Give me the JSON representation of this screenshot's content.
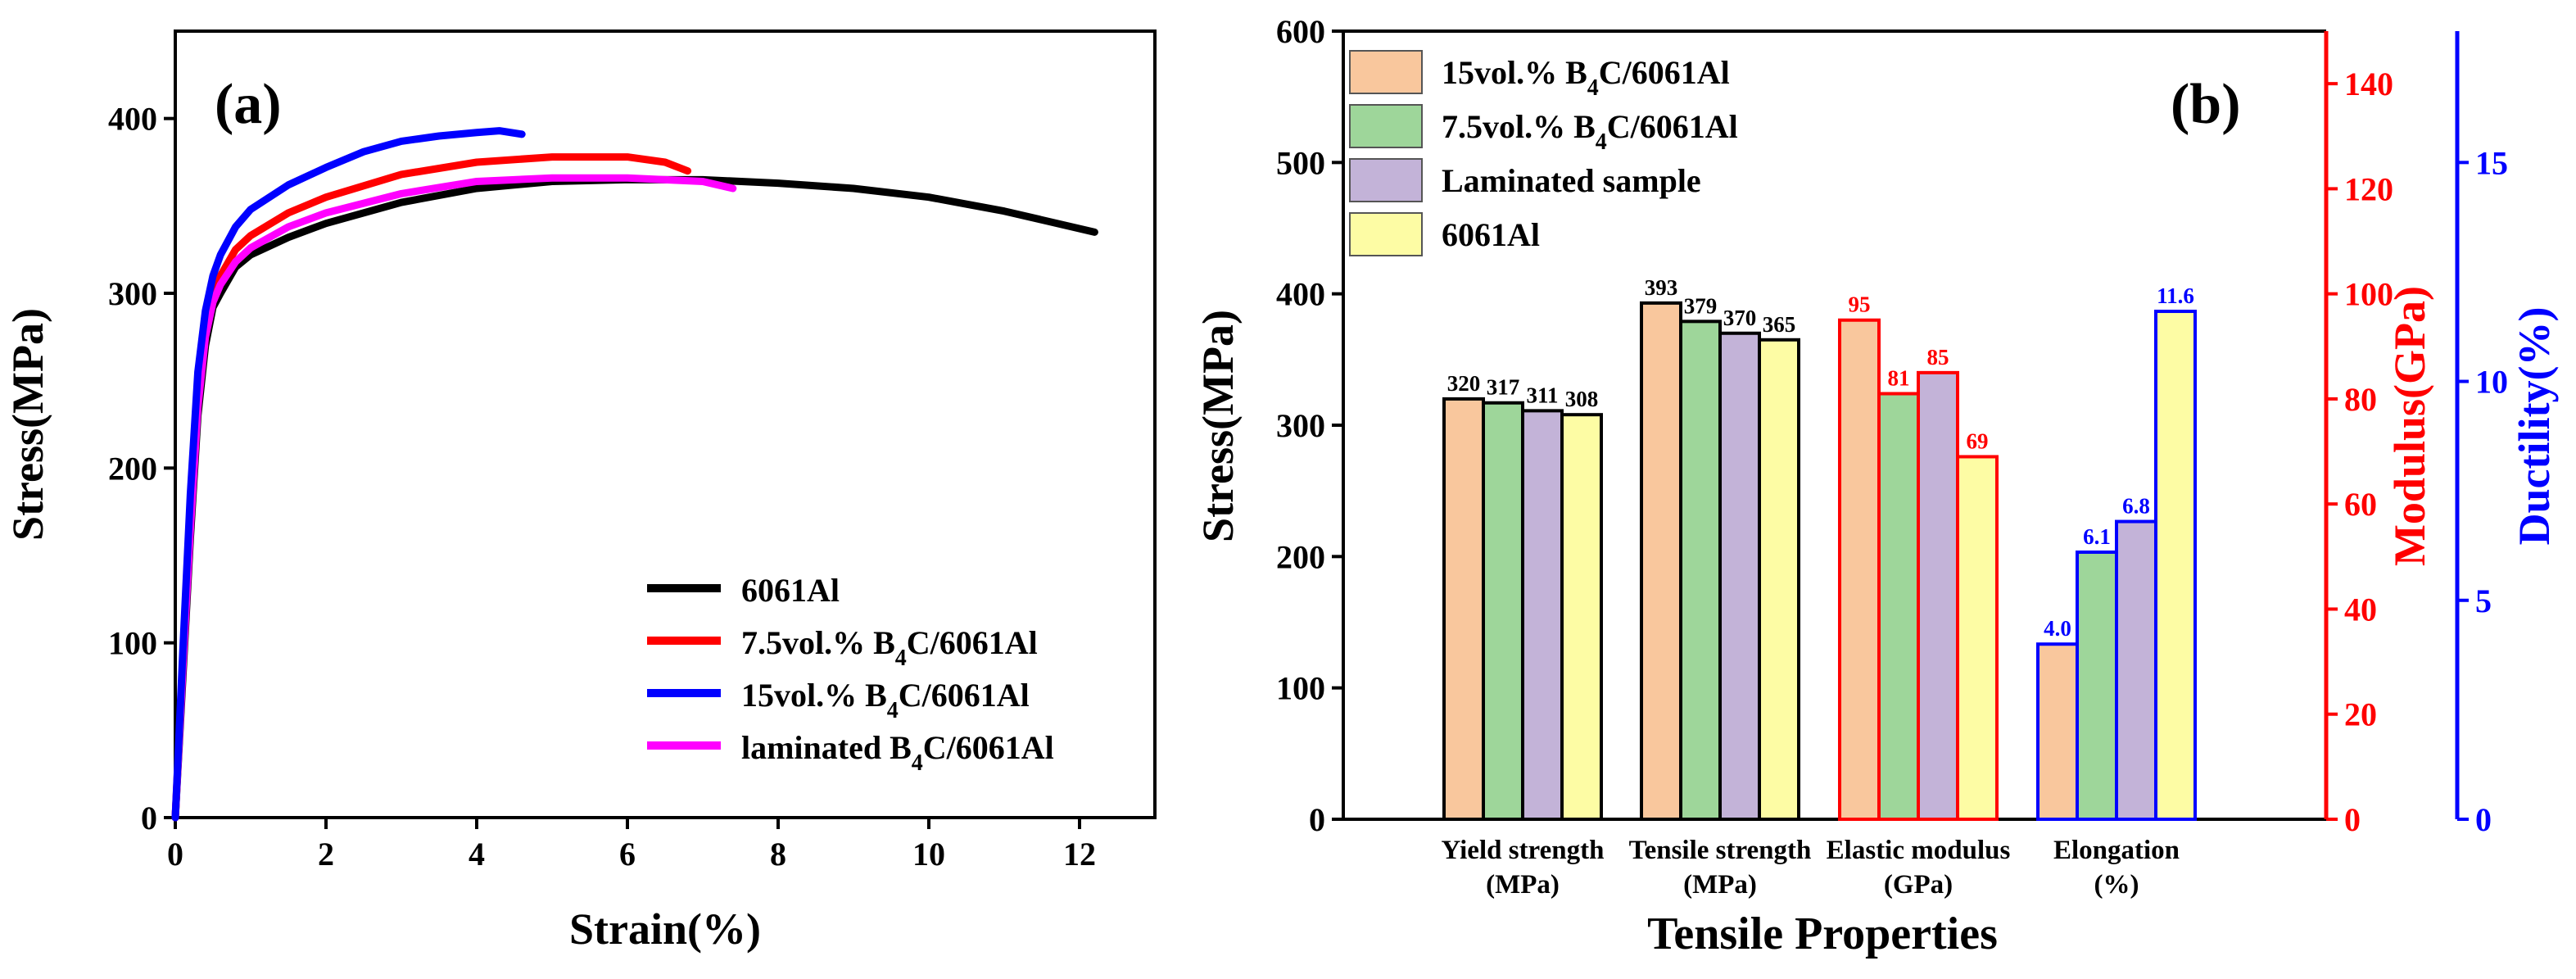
{
  "chart_data": [
    {
      "type": "line",
      "panel_label": "(a)",
      "xlabel": "Strain(%)",
      "ylabel": "Stress(MPa)",
      "xlim": [
        0,
        13
      ],
      "ylim": [
        0,
        450
      ],
      "xticks": [
        0,
        2,
        4,
        6,
        8,
        10,
        12
      ],
      "yticks": [
        0,
        100,
        200,
        300,
        400
      ],
      "legend_placement": "bottom-right",
      "series": [
        {
          "name": "6061Al",
          "color": "#000000",
          "x": [
            0,
            0.1,
            0.2,
            0.3,
            0.4,
            0.5,
            0.6,
            0.8,
            1.0,
            1.5,
            2,
            3,
            4,
            5,
            6,
            7,
            8,
            9,
            10,
            11,
            12.2
          ],
          "y": [
            0,
            80,
            160,
            230,
            270,
            292,
            300,
            315,
            322,
            332,
            340,
            352,
            360,
            364,
            365,
            365,
            363,
            360,
            355,
            347,
            335
          ]
        },
        {
          "name": "7.5vol.% B4C/6061Al",
          "color": "#ff0000",
          "x": [
            0,
            0.1,
            0.2,
            0.3,
            0.4,
            0.5,
            0.6,
            0.8,
            1.0,
            1.5,
            2,
            3,
            4,
            5,
            6,
            6.5,
            6.8
          ],
          "y": [
            0,
            90,
            170,
            240,
            280,
            300,
            310,
            325,
            333,
            346,
            355,
            368,
            375,
            378,
            378,
            375,
            370
          ]
        },
        {
          "name": "15vol.% B4C/6061Al",
          "color": "#0000ff",
          "x": [
            0,
            0.1,
            0.2,
            0.3,
            0.4,
            0.5,
            0.6,
            0.8,
            1.0,
            1.5,
            2,
            2.5,
            3,
            3.5,
            4,
            4.3,
            4.6
          ],
          "y": [
            0,
            95,
            185,
            255,
            290,
            310,
            322,
            338,
            348,
            362,
            372,
            381,
            387,
            390,
            392,
            393,
            391
          ]
        },
        {
          "name": "laminated B4C/6061Al",
          "color": "#ff00ff",
          "x": [
            0,
            0.1,
            0.2,
            0.3,
            0.4,
            0.5,
            0.6,
            0.8,
            1.0,
            1.5,
            2,
            3,
            4,
            5,
            6,
            7,
            7.4
          ],
          "y": [
            0,
            85,
            165,
            235,
            275,
            295,
            305,
            318,
            326,
            338,
            346,
            357,
            364,
            366,
            366,
            364,
            360
          ]
        }
      ]
    },
    {
      "type": "bar",
      "panel_label": "(b)",
      "xlabel": "Tensile Properties",
      "ylabel": "Stress(MPa)",
      "ylabel_right_1": "Modulus(GPa)",
      "ylabel_right_2": "Ductility(%)",
      "ylim": [
        0,
        600
      ],
      "yticks": [
        0,
        100,
        200,
        300,
        400,
        500,
        600
      ],
      "ylim_right_1": [
        0,
        150
      ],
      "yticks_right_1": [
        0,
        20,
        40,
        60,
        80,
        100,
        120,
        140
      ],
      "ylim_right_2": [
        0,
        18
      ],
      "yticks_right_2": [
        0,
        5,
        10,
        15
      ],
      "legend_placement": "top-left",
      "categories": [
        {
          "line1": "Yield strength",
          "line2": "(MPa)",
          "axis": "left"
        },
        {
          "line1": "Tensile strength",
          "line2": "(MPa)",
          "axis": "left"
        },
        {
          "line1": "Elastic modulus",
          "line2": "(GPa)",
          "axis": "right_1"
        },
        {
          "line1": "Elongation",
          "line2": "(%)",
          "axis": "right_2"
        }
      ],
      "series": [
        {
          "name": "15vol.% B4C/6061Al",
          "color": "#f9c79d",
          "values": [
            320,
            393,
            95,
            4.0
          ],
          "labels": [
            "320",
            "393",
            "95",
            "4.0"
          ]
        },
        {
          "name": "7.5vol.% B4C/6061Al",
          "color": "#9ed69a",
          "values": [
            317,
            379,
            81,
            6.1
          ],
          "labels": [
            "317",
            "379",
            "81",
            "6.1"
          ]
        },
        {
          "name": "Laminated sample",
          "color": "#c3b3d8",
          "values": [
            311,
            370,
            85,
            6.8
          ],
          "labels": [
            "311",
            "370",
            "85",
            "6.8"
          ]
        },
        {
          "name": "6061Al",
          "color": "#fdfca4",
          "values": [
            308,
            365,
            69,
            11.6
          ],
          "labels": [
            "308",
            "365",
            "69",
            "11.6"
          ]
        }
      ],
      "axis_colors": {
        "left": "#000000",
        "right_1": "#ff0000",
        "right_2": "#0000ff"
      }
    }
  ]
}
